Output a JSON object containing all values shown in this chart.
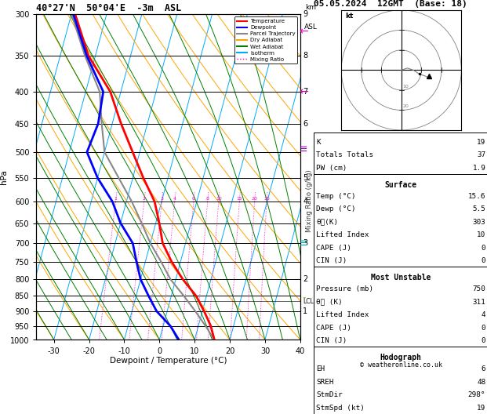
{
  "title_left": "40°27'N  50°04'E  -3m  ASL",
  "title_right": "05.05.2024  12GMT  (Base: 18)",
  "xlabel": "Dewpoint / Temperature (°C)",
  "pressure_levels": [
    300,
    350,
    400,
    450,
    500,
    550,
    600,
    650,
    700,
    750,
    800,
    850,
    900,
    950,
    1000
  ],
  "xmin": -35,
  "xmax": 40,
  "pmin": 300,
  "pmax": 1000,
  "skew_factor": 25.0,
  "temp_profile_p": [
    1000,
    950,
    900,
    850,
    800,
    750,
    700,
    650,
    600,
    550,
    500,
    450,
    400,
    350,
    300
  ],
  "temp_profile_t": [
    15.6,
    13.5,
    10.5,
    7.0,
    2.0,
    -2.5,
    -6.5,
    -9.0,
    -12.0,
    -17.0,
    -22.0,
    -27.5,
    -33.0,
    -42.0,
    -49.0
  ],
  "dewp_profile_p": [
    1000,
    950,
    900,
    850,
    800,
    750,
    700,
    650,
    600,
    550,
    500,
    450,
    400,
    350,
    300
  ],
  "dewp_profile_t": [
    5.5,
    2.0,
    -3.0,
    -6.5,
    -10.0,
    -12.5,
    -15.0,
    -20.0,
    -24.0,
    -30.0,
    -35.0,
    -34.0,
    -35.0,
    -42.5,
    -49.5
  ],
  "parcel_p": [
    1000,
    950,
    900,
    850,
    800,
    750,
    700,
    650,
    600,
    550,
    500,
    450,
    400,
    350,
    300
  ],
  "parcel_t": [
    15.6,
    12.0,
    8.0,
    3.5,
    -1.5,
    -5.5,
    -10.0,
    -14.0,
    -18.5,
    -24.0,
    -30.0,
    -33.0,
    -36.0,
    -43.0,
    -50.0
  ],
  "mixing_ratio_values": [
    1,
    2,
    3,
    4,
    6,
    8,
    10,
    15,
    20,
    25
  ],
  "lcl_pressure": 868,
  "km_labels": {
    "300": "9",
    "350": "8",
    "400": "7",
    "450": "6",
    "500": "",
    "550": "5",
    "600": "4",
    "650": "",
    "700": "3",
    "750": "",
    "800": "2",
    "850": "",
    "900": "1",
    "950": "",
    "1000": ""
  },
  "colors": {
    "temp": "#FF0000",
    "dewp": "#0000FF",
    "parcel": "#888888",
    "dry_adiabat": "#FFA500",
    "wet_adiabat": "#008000",
    "isotherm": "#00AAFF",
    "mixing_ratio": "#FF00CC",
    "background": "#FFFFFF"
  },
  "info": {
    "K": 19,
    "Totals_Totals": 37,
    "PW_cm": 1.9,
    "Surface_Temp": 15.6,
    "Surface_Dewp": 5.5,
    "theta_e_K": 303,
    "Lifted_Index": 10,
    "CAPE": 0,
    "CIN": 0,
    "MU_Pressure": 750,
    "MU_theta_e": 311,
    "MU_Lifted_Index": 4,
    "MU_CAPE": 0,
    "MU_CIN": 0,
    "EH": 6,
    "SREH": 48,
    "StmDir": 298,
    "StmSpd": 19
  },
  "legend_items": [
    [
      "Temperature",
      "#FF0000",
      "solid"
    ],
    [
      "Dewpoint",
      "#0000FF",
      "solid"
    ],
    [
      "Parcel Trajectory",
      "#888888",
      "solid"
    ],
    [
      "Dry Adiabat",
      "#FFA500",
      "solid"
    ],
    [
      "Wet Adiabat",
      "#008000",
      "solid"
    ],
    [
      "Isotherm",
      "#00AAFF",
      "solid"
    ],
    [
      "Mixing Ratio",
      "#FF00CC",
      "dotted"
    ]
  ],
  "arrow_annotations": [
    {
      "p": 320,
      "color": "#FF00CC",
      "symbol": "arrow_left"
    },
    {
      "p": 400,
      "color": "#CC00CC",
      "symbol": "arrow_left"
    },
    {
      "p": 495,
      "color": "#8800AA",
      "symbol": "barbs"
    },
    {
      "p": 700,
      "color": "#00AAAA",
      "symbol": "barbs"
    },
    {
      "p": 855,
      "color": "#CCAA00",
      "symbol": "arrow"
    }
  ]
}
